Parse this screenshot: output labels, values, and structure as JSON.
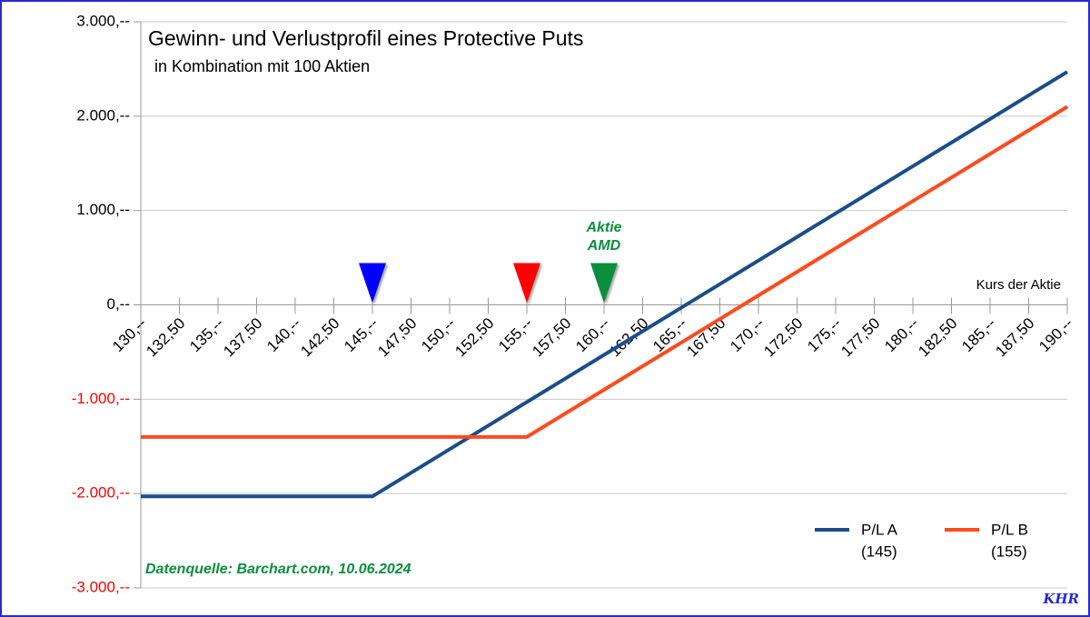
{
  "chart_data": {
    "type": "line",
    "title": "Gewinn- und Verlustprofil eines Protective Puts",
    "subtitle": "in Kombination mit 100 Aktien",
    "x_label": "Kurs der Aktie",
    "source": "Datenquelle: Barchart.com, 10.06.2024",
    "signature": "KHR",
    "xlim": [
      130,
      190
    ],
    "ylim": [
      -3000,
      3000
    ],
    "grid": true,
    "negative_tick_color": "#ff0000",
    "xticks": [
      {
        "value": 130,
        "label": "130,--"
      },
      {
        "value": 132.5,
        "label": "132,50"
      },
      {
        "value": 135,
        "label": "135,--"
      },
      {
        "value": 137.5,
        "label": "137,50"
      },
      {
        "value": 140,
        "label": "140,--"
      },
      {
        "value": 142.5,
        "label": "142,50"
      },
      {
        "value": 145,
        "label": "145,--"
      },
      {
        "value": 147.5,
        "label": "147,50"
      },
      {
        "value": 150,
        "label": "150,--"
      },
      {
        "value": 152.5,
        "label": "152,50"
      },
      {
        "value": 155,
        "label": "155,--"
      },
      {
        "value": 157.5,
        "label": "157,50"
      },
      {
        "value": 160,
        "label": "160,--"
      },
      {
        "value": 162.5,
        "label": "162,50"
      },
      {
        "value": 165,
        "label": "165,--"
      },
      {
        "value": 167.5,
        "label": "167,50"
      },
      {
        "value": 170,
        "label": "170,--"
      },
      {
        "value": 172.5,
        "label": "172,50"
      },
      {
        "value": 175,
        "label": "175,--"
      },
      {
        "value": 177.5,
        "label": "177,50"
      },
      {
        "value": 180,
        "label": "180,--"
      },
      {
        "value": 182.5,
        "label": "182,50"
      },
      {
        "value": 185,
        "label": "185,--"
      },
      {
        "value": 187.5,
        "label": "187,50"
      },
      {
        "value": 190,
        "label": "190,--"
      }
    ],
    "yticks": [
      {
        "value": 3000,
        "label": "3.000,--"
      },
      {
        "value": 2000,
        "label": "2.000,--"
      },
      {
        "value": 1000,
        "label": "1.000,--"
      },
      {
        "value": 0,
        "label": "0,--"
      },
      {
        "value": -1000,
        "label": "-1.000,--"
      },
      {
        "value": -2000,
        "label": "-2.000,--"
      },
      {
        "value": -3000,
        "label": "-3.000,--"
      }
    ],
    "series": [
      {
        "name": "P/L A",
        "strike_label": "(145)",
        "color": "#1a4e8a",
        "x": [
          130,
          145,
          190
        ],
        "values": [
          -2030,
          -2030,
          2470
        ]
      },
      {
        "name": "P/L B",
        "strike_label": "(155)",
        "color": "#ff4a1c",
        "x": [
          130,
          155,
          190
        ],
        "values": [
          -1400,
          -1400,
          2100
        ]
      }
    ],
    "markers": [
      {
        "x": 145,
        "color": "#0000ff"
      },
      {
        "x": 155,
        "color": "#ff0000"
      },
      {
        "x": 160,
        "color": "#0a8f3c",
        "label": [
          "Aktie",
          "AMD"
        ]
      }
    ]
  }
}
